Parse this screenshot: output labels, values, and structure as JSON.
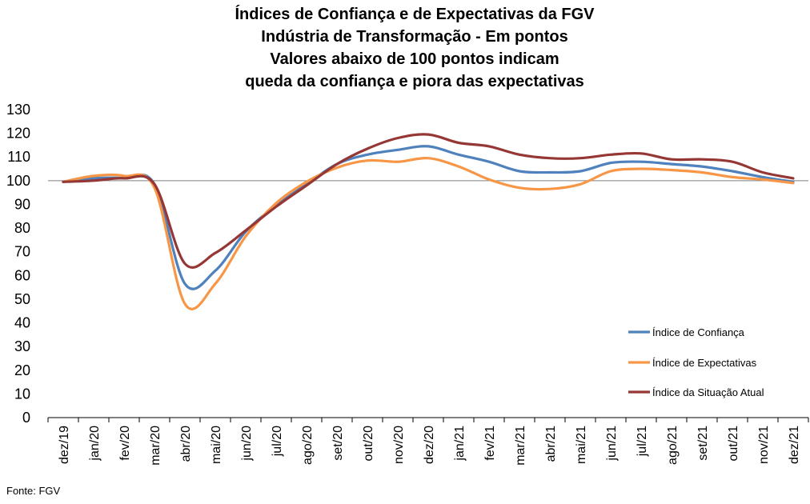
{
  "source": "Fonte: FGV",
  "chart_data": {
    "type": "line",
    "title_lines": [
      "Índices de Confiança e de Expectativas da FGV",
      "Indústria de Transformação - Em pontos",
      "Valores abaixo de 100 pontos indicam",
      "queda da confiança e piora das expectativas"
    ],
    "xlabel": "",
    "ylabel": "",
    "ylim": [
      0,
      130
    ],
    "yticks": [
      0,
      10,
      20,
      30,
      40,
      50,
      60,
      70,
      80,
      90,
      100,
      110,
      120,
      130
    ],
    "reference_line": 100,
    "grid": false,
    "legend_position": "right",
    "categories": [
      "dez/19",
      "jan/20",
      "fev/20",
      "mar/20",
      "abr/20",
      "mai/20",
      "jun/20",
      "jul/20",
      "ago/20",
      "set/20",
      "out/20",
      "nov/20",
      "dez/20",
      "jan/21",
      "fev/21",
      "mar/21",
      "abr/21",
      "mai/21",
      "jun/21",
      "jul/21",
      "ago/21",
      "set/21",
      "out/21",
      "nov/21",
      "dez/21"
    ],
    "series": [
      {
        "name": "Índice de Confiança",
        "color": "#4f81bd",
        "values": [
          99.5,
          101.0,
          101.0,
          98.5,
          56.5,
          62.0,
          78.5,
          89.5,
          98.5,
          107.0,
          111.0,
          113.0,
          114.5,
          111.0,
          108.0,
          104.0,
          103.5,
          104.0,
          107.5,
          108.0,
          107.0,
          106.0,
          104.0,
          101.5,
          99.5
        ]
      },
      {
        "name": "Índice de Expectativas",
        "color": "#f79646",
        "values": [
          99.5,
          102.0,
          102.0,
          97.0,
          48.0,
          56.5,
          76.5,
          90.5,
          99.5,
          105.5,
          108.5,
          108.0,
          109.5,
          106.0,
          100.5,
          97.0,
          96.5,
          98.5,
          104.0,
          105.0,
          104.5,
          103.5,
          101.5,
          100.5,
          99.0
        ]
      },
      {
        "name": "Índice da Situação Atual",
        "color": "#953735",
        "values": [
          99.5,
          100.0,
          101.0,
          98.5,
          65.0,
          69.5,
          79.0,
          89.0,
          98.0,
          107.0,
          113.5,
          118.0,
          119.5,
          116.0,
          114.5,
          111.0,
          109.5,
          109.5,
          111.0,
          111.5,
          109.0,
          109.0,
          108.0,
          103.5,
          101.0
        ]
      }
    ]
  }
}
